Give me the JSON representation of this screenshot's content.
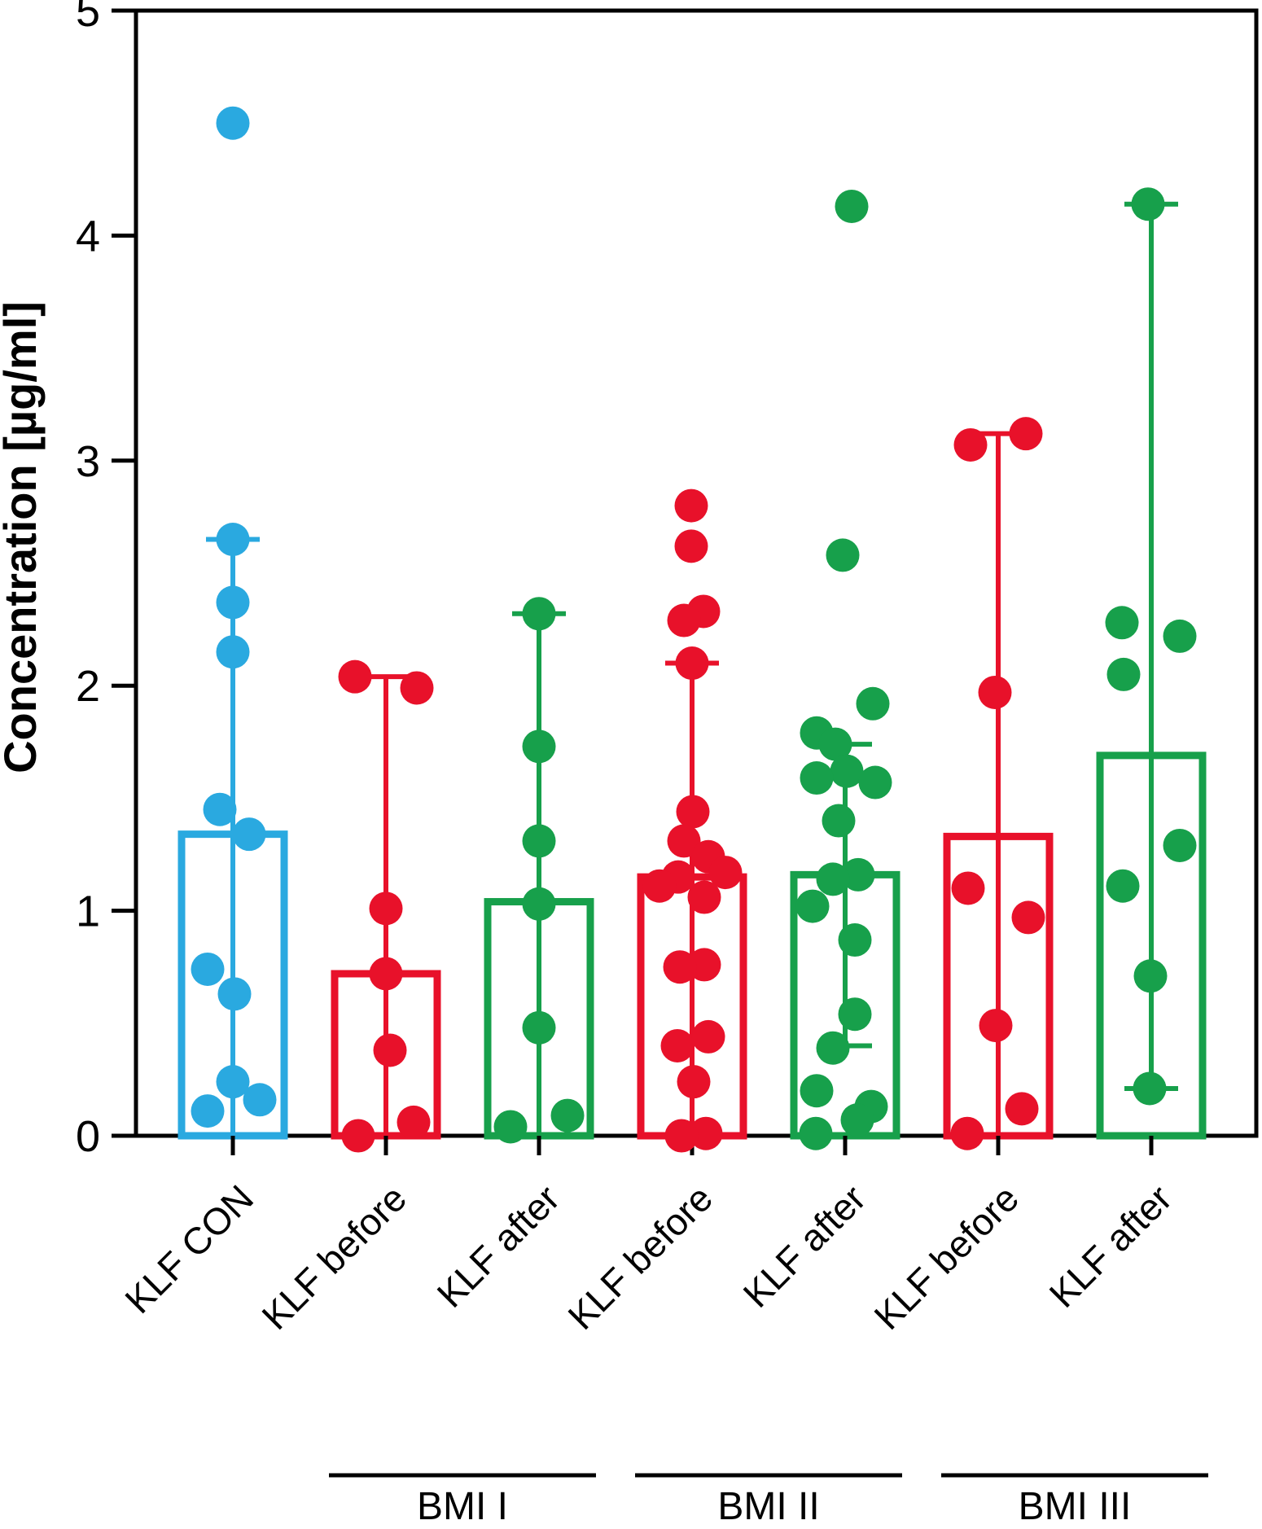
{
  "figure": {
    "background": "#ffffff",
    "frame_color": "#000000"
  },
  "chart_data": {
    "type": "bar",
    "title": "",
    "subtitle": "",
    "ylabel": "Concentration [µg/ml]",
    "xlabel": "",
    "ylim": [
      0,
      5
    ],
    "yticks": [
      "0",
      "1",
      "2",
      "3",
      "4",
      "5"
    ],
    "grid": false,
    "legend": false,
    "categories": [
      "KLF CON",
      "KLF before",
      "KLF after",
      "KLF before",
      "KLF after",
      "KLF before",
      "KLF after"
    ],
    "groups": [
      {
        "label": "BMI I",
        "columns": [
          1,
          2
        ]
      },
      {
        "label": "BMI II",
        "columns": [
          3,
          4
        ]
      },
      {
        "label": "BMI III",
        "columns": [
          5,
          6
        ]
      }
    ],
    "palette": {
      "control_blue": "#2AA9E0",
      "before_red": "#E8112A",
      "after_green": "#17A04B",
      "axis_black": "#000000"
    },
    "series": [
      {
        "category": "KLF CON",
        "role": "control",
        "color": "#2AA9E0",
        "bar_mean": 1.34,
        "whisker_top": 2.65,
        "whisker_bottom": 0,
        "bottom_cap": false,
        "points": [
          {
            "v": 4.5,
            "dx": 0
          },
          {
            "v": 2.65,
            "dx": 0
          },
          {
            "v": 2.37,
            "dx": 0
          },
          {
            "v": 2.15,
            "dx": 0
          },
          {
            "v": 1.45,
            "dx": -16
          },
          {
            "v": 1.34,
            "dx": 20
          },
          {
            "v": 0.74,
            "dx": -31
          },
          {
            "v": 0.63,
            "dx": 2
          },
          {
            "v": 0.24,
            "dx": 0
          },
          {
            "v": 0.16,
            "dx": 33
          },
          {
            "v": 0.11,
            "dx": -31
          }
        ]
      },
      {
        "category": "KLF before",
        "role": "before",
        "color": "#E8112A",
        "bar_mean": 0.72,
        "whisker_top": 2.04,
        "whisker_bottom": 0,
        "bottom_cap": false,
        "points": [
          {
            "v": 2.04,
            "dx": -38
          },
          {
            "v": 1.99,
            "dx": 38
          },
          {
            "v": 1.01,
            "dx": 0
          },
          {
            "v": 0.72,
            "dx": 0
          },
          {
            "v": 0.38,
            "dx": 5
          },
          {
            "v": 0.06,
            "dx": 34
          },
          {
            "v": 0.0,
            "dx": -34
          }
        ]
      },
      {
        "category": "KLF after",
        "role": "after",
        "color": "#17A04B",
        "bar_mean": 1.04,
        "whisker_top": 2.32,
        "whisker_bottom": 0,
        "bottom_cap": false,
        "points": [
          {
            "v": 2.32,
            "dx": 0
          },
          {
            "v": 1.73,
            "dx": 0
          },
          {
            "v": 1.31,
            "dx": 0
          },
          {
            "v": 1.03,
            "dx": 0
          },
          {
            "v": 0.48,
            "dx": 0
          },
          {
            "v": 0.09,
            "dx": 35
          },
          {
            "v": 0.04,
            "dx": -35
          }
        ]
      },
      {
        "category": "KLF before",
        "role": "before",
        "color": "#E8112A",
        "bar_mean": 1.15,
        "whisker_top": 2.1,
        "whisker_bottom": 0,
        "bottom_cap": false,
        "points": [
          {
            "v": 2.8,
            "dx": -1
          },
          {
            "v": 2.62,
            "dx": -1
          },
          {
            "v": 2.33,
            "dx": 14
          },
          {
            "v": 2.29,
            "dx": -10
          },
          {
            "v": 2.1,
            "dx": 0
          },
          {
            "v": 1.44,
            "dx": 1
          },
          {
            "v": 1.31,
            "dx": -10
          },
          {
            "v": 1.24,
            "dx": 20
          },
          {
            "v": 1.17,
            "dx": 41
          },
          {
            "v": 1.15,
            "dx": -17
          },
          {
            "v": 1.11,
            "dx": -40
          },
          {
            "v": 1.06,
            "dx": 15
          },
          {
            "v": 0.76,
            "dx": 15
          },
          {
            "v": 0.75,
            "dx": -15
          },
          {
            "v": 0.44,
            "dx": 20
          },
          {
            "v": 0.4,
            "dx": -18
          },
          {
            "v": 0.24,
            "dx": 2
          },
          {
            "v": 0.01,
            "dx": 17
          },
          {
            "v": 0.0,
            "dx": -13
          }
        ]
      },
      {
        "category": "KLF after",
        "role": "after",
        "color": "#17A04B",
        "bar_mean": 1.16,
        "whisker_top": 1.74,
        "whisker_bottom": 0.4,
        "bottom_cap": true,
        "points": [
          {
            "v": 4.13,
            "dx": 8
          },
          {
            "v": 2.58,
            "dx": -3
          },
          {
            "v": 1.92,
            "dx": 34
          },
          {
            "v": 1.79,
            "dx": -35
          },
          {
            "v": 1.74,
            "dx": -12
          },
          {
            "v": 1.62,
            "dx": 2
          },
          {
            "v": 1.59,
            "dx": -35
          },
          {
            "v": 1.57,
            "dx": 37
          },
          {
            "v": 1.4,
            "dx": -8
          },
          {
            "v": 1.16,
            "dx": 16
          },
          {
            "v": 1.14,
            "dx": -15
          },
          {
            "v": 1.02,
            "dx": -40
          },
          {
            "v": 0.87,
            "dx": 12
          },
          {
            "v": 0.54,
            "dx": 12
          },
          {
            "v": 0.39,
            "dx": -15
          },
          {
            "v": 0.2,
            "dx": -35
          },
          {
            "v": 0.13,
            "dx": 32
          },
          {
            "v": 0.07,
            "dx": 15
          },
          {
            "v": 0.01,
            "dx": -36
          }
        ]
      },
      {
        "category": "KLF before",
        "role": "before",
        "color": "#E8112A",
        "bar_mean": 1.33,
        "whisker_top": 3.12,
        "whisker_bottom": 0,
        "bottom_cap": false,
        "points": [
          {
            "v": 3.12,
            "dx": 34
          },
          {
            "v": 3.07,
            "dx": -34
          },
          {
            "v": 1.97,
            "dx": -4
          },
          {
            "v": 1.1,
            "dx": -37
          },
          {
            "v": 0.97,
            "dx": 37
          },
          {
            "v": 0.49,
            "dx": -3
          },
          {
            "v": 0.12,
            "dx": 29
          },
          {
            "v": 0.01,
            "dx": -38
          }
        ]
      },
      {
        "category": "KLF after",
        "role": "after",
        "color": "#17A04B",
        "bar_mean": 1.69,
        "whisker_top": 4.14,
        "whisker_bottom": 0.21,
        "bottom_cap": true,
        "points": [
          {
            "v": 4.14,
            "dx": -4
          },
          {
            "v": 2.28,
            "dx": -36
          },
          {
            "v": 2.22,
            "dx": 35
          },
          {
            "v": 2.05,
            "dx": -34
          },
          {
            "v": 1.29,
            "dx": 35
          },
          {
            "v": 1.11,
            "dx": -35
          },
          {
            "v": 0.71,
            "dx": -1
          },
          {
            "v": 0.21,
            "dx": -2
          }
        ]
      }
    ]
  }
}
